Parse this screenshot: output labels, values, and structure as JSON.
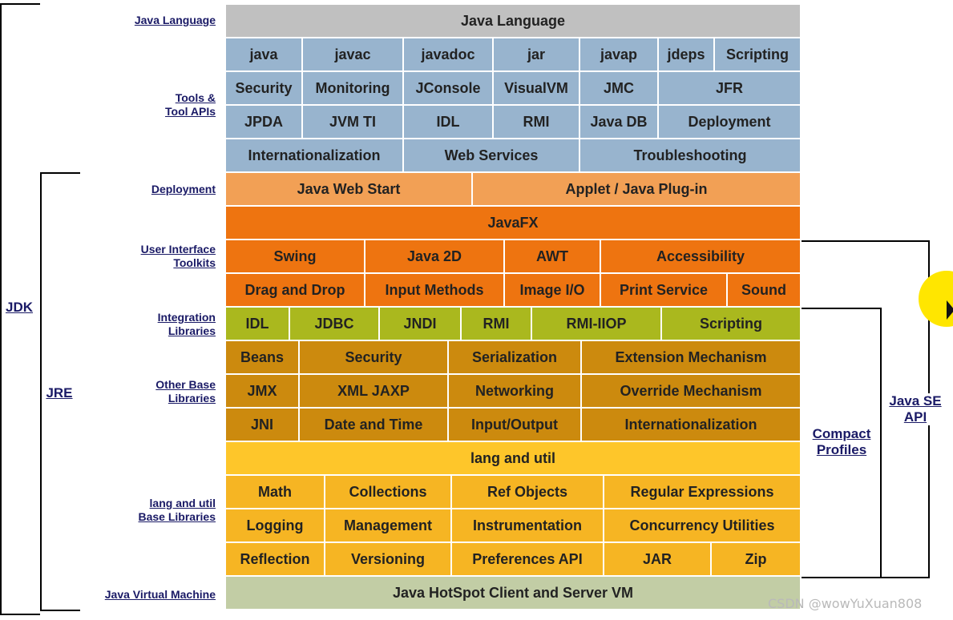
{
  "colors": {
    "language": "#c0c0c0",
    "tools": "#98b4ce",
    "deployment": "#f2a055",
    "ui": "#ee7410",
    "integration": "#aab81e",
    "other": "#cc8a0e",
    "langutil_header": "#fec62a",
    "langutil": "#f6b523",
    "jvm": "#c2cda5",
    "divider": "#ffffff"
  },
  "row_labels": {
    "java_language": "Java Language",
    "tools": "Tools &\nTool APIs",
    "deployment": "Deployment",
    "ui": "User Interface\nToolkits",
    "integration": "Integration\nLibraries",
    "other": "Other Base\nLibraries",
    "langutil": "lang and util\nBase Libraries",
    "jvm": "Java Virtual Machine"
  },
  "rows": [
    {
      "color": "language",
      "cells": [
        {
          "text": "Java Language"
        }
      ]
    },
    {
      "color": "tools",
      "cells": [
        {
          "text": "java"
        },
        {
          "text": "javac"
        },
        {
          "text": "javadoc"
        },
        {
          "text": "jar"
        },
        {
          "text": "javap"
        },
        {
          "text": "jdeps"
        },
        {
          "text": "Scripting"
        }
      ]
    },
    {
      "color": "tools",
      "cells": [
        {
          "text": "Security"
        },
        {
          "text": "Monitoring"
        },
        {
          "text": "JConsole"
        },
        {
          "text": "VisualVM"
        },
        {
          "text": "JMC"
        },
        {
          "text": "JFR"
        }
      ]
    },
    {
      "color": "tools",
      "cells": [
        {
          "text": "JPDA"
        },
        {
          "text": "JVM TI"
        },
        {
          "text": "IDL"
        },
        {
          "text": "RMI"
        },
        {
          "text": "Java DB"
        },
        {
          "text": "Deployment"
        }
      ]
    },
    {
      "color": "tools",
      "cells": [
        {
          "text": "Internationalization"
        },
        {
          "text": "Web Services"
        },
        {
          "text": "Troubleshooting"
        }
      ]
    },
    {
      "color": "deployment",
      "cells": [
        {
          "text": "Java Web Start"
        },
        {
          "text": "Applet / Java Plug-in"
        }
      ]
    },
    {
      "color": "ui",
      "cells": [
        {
          "text": "JavaFX"
        }
      ]
    },
    {
      "color": "ui",
      "cells": [
        {
          "text": "Swing"
        },
        {
          "text": "Java 2D"
        },
        {
          "text": "AWT"
        },
        {
          "text": "Accessibility"
        }
      ]
    },
    {
      "color": "ui",
      "cells": [
        {
          "text": "Drag and Drop"
        },
        {
          "text": "Input Methods"
        },
        {
          "text": "Image I/O"
        },
        {
          "text": "Print Service"
        },
        {
          "text": "Sound"
        }
      ]
    },
    {
      "color": "integration",
      "cells": [
        {
          "text": "IDL"
        },
        {
          "text": "JDBC"
        },
        {
          "text": "JNDI"
        },
        {
          "text": "RMI"
        },
        {
          "text": "RMI-IIOP"
        },
        {
          "text": "Scripting"
        }
      ]
    },
    {
      "color": "other",
      "cells": [
        {
          "text": "Beans"
        },
        {
          "text": "Security"
        },
        {
          "text": "Serialization"
        },
        {
          "text": "Extension Mechanism"
        }
      ]
    },
    {
      "color": "other",
      "cells": [
        {
          "text": "JMX"
        },
        {
          "text": "XML JAXP"
        },
        {
          "text": "Networking"
        },
        {
          "text": "Override Mechanism"
        }
      ]
    },
    {
      "color": "other",
      "cells": [
        {
          "text": "JNI"
        },
        {
          "text": "Date and Time"
        },
        {
          "text": "Input/Output"
        },
        {
          "text": "Internationalization"
        }
      ]
    },
    {
      "color": "langutil_header",
      "cells": [
        {
          "text": "lang and util"
        }
      ]
    },
    {
      "color": "langutil",
      "cells": [
        {
          "text": "Math"
        },
        {
          "text": "Collections"
        },
        {
          "text": "Ref Objects"
        },
        {
          "text": "Regular Expressions"
        }
      ]
    },
    {
      "color": "langutil",
      "cells": [
        {
          "text": "Logging"
        },
        {
          "text": "Management"
        },
        {
          "text": "Instrumentation"
        },
        {
          "text": "Concurrency Utilities"
        }
      ]
    },
    {
      "color": "langutil",
      "cells": [
        {
          "text": "Reflection"
        },
        {
          "text": "Versioning"
        },
        {
          "text": "Preferences API"
        },
        {
          "text": "JAR"
        },
        {
          "text": "Zip"
        }
      ]
    },
    {
      "color": "jvm",
      "cells": [
        {
          "text": "Java HotSpot Client and Server VM"
        }
      ]
    }
  ],
  "brackets": {
    "jdk": "JDK",
    "jre": "JRE",
    "compact": "Compact\nProfiles",
    "javase": "Java SE\nAPI"
  },
  "watermark": "CSDN @wowYuXuan808"
}
